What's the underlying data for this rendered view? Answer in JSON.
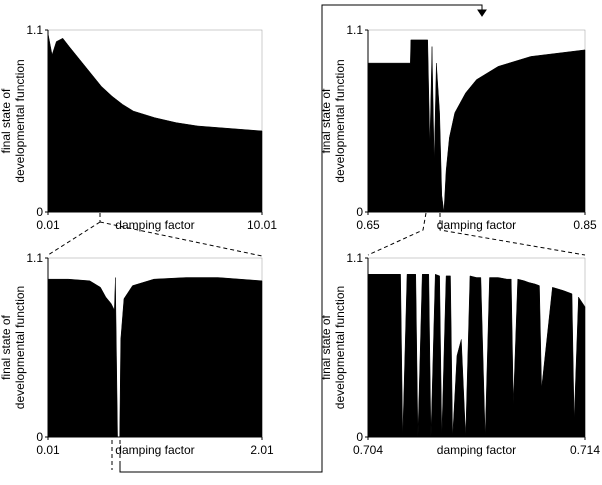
{
  "chart_data": [
    {
      "type": "area",
      "color": "#000000",
      "ylabel": [
        "final state of",
        "developmental function"
      ],
      "xlabel": "damping factor",
      "xlim": [
        0.01,
        10.01
      ],
      "ylim": [
        0,
        1.1
      ],
      "xticks": [
        0.01,
        10.01
      ],
      "yticks": [
        0,
        1.1
      ],
      "x": [
        0.01,
        0.2,
        0.4,
        0.7,
        1,
        1.5,
        2,
        2.5,
        3,
        3.5,
        4,
        5,
        6,
        7,
        8,
        9,
        10.01
      ],
      "values": [
        1.08,
        0.95,
        1.03,
        1.05,
        1.0,
        0.92,
        0.84,
        0.76,
        0.7,
        0.65,
        0.61,
        0.57,
        0.54,
        0.52,
        0.51,
        0.5,
        0.49
      ]
    },
    {
      "type": "area",
      "color": "#000000",
      "ylabel": [
        "final state of",
        "developmental function"
      ],
      "xlabel": "damping factor",
      "xlim": [
        0.01,
        2.01
      ],
      "ylim": [
        0,
        1.1
      ],
      "xticks": [
        0.01,
        2.01
      ],
      "yticks": [
        0,
        1.1
      ],
      "x": [
        0.01,
        0.2,
        0.4,
        0.5,
        0.55,
        0.6,
        0.63,
        0.64,
        0.65,
        0.66,
        0.68,
        0.69,
        0.72,
        0.8,
        1.0,
        1.3,
        1.6,
        2.01
      ],
      "values": [
        0.97,
        0.97,
        0.96,
        0.92,
        0.86,
        0.82,
        0.78,
        0.98,
        0.5,
        0,
        0,
        0.6,
        0.85,
        0.93,
        0.97,
        0.98,
        0.98,
        0.96
      ]
    },
    {
      "type": "area",
      "color": "#000000",
      "ylabel": [
        "final state of",
        "developmental function"
      ],
      "xlabel": "damping factor",
      "xlim": [
        0.65,
        0.85
      ],
      "ylim": [
        0,
        1.1
      ],
      "xticks": [
        0.65,
        0.85
      ],
      "yticks": [
        0,
        1.1
      ],
      "x": [
        0.65,
        0.689,
        0.6895,
        0.705,
        0.707,
        0.709,
        0.711,
        0.713,
        0.716,
        0.718,
        0.72,
        0.722,
        0.725,
        0.73,
        0.74,
        0.75,
        0.77,
        0.8,
        0.85
      ],
      "values": [
        0.9,
        0.9,
        1.04,
        1.04,
        0.4,
        1.0,
        0.3,
        0.9,
        0.6,
        0.1,
        0,
        0.25,
        0.45,
        0.6,
        0.72,
        0.8,
        0.88,
        0.94,
        0.98
      ]
    },
    {
      "type": "area",
      "color": "#000000",
      "ylabel": [
        "final state of",
        "developmental function"
      ],
      "xlabel": "damping factor",
      "xlim": [
        0.704,
        0.714
      ],
      "ylim": [
        0,
        1.1
      ],
      "xticks": [
        0.704,
        0.714
      ],
      "yticks": [
        0,
        1.1
      ],
      "x": [
        0.704,
        0.7055,
        0.7056,
        0.7058,
        0.7062,
        0.7063,
        0.7065,
        0.7068,
        0.7069,
        0.7071,
        0.7073,
        0.7074,
        0.7076,
        0.7078,
        0.7079,
        0.7081,
        0.7083,
        0.7085,
        0.7087,
        0.709,
        0.7092,
        0.7094,
        0.7096,
        0.71,
        0.7104,
        0.7106,
        0.7107,
        0.7109,
        0.7112,
        0.7114,
        0.7117,
        0.7119,
        0.712,
        0.7125,
        0.713,
        0.7134,
        0.7135,
        0.7137,
        0.714
      ],
      "values": [
        1.0,
        1.0,
        0,
        1.0,
        1.0,
        0,
        1.0,
        1.0,
        0,
        1.0,
        0.99,
        0,
        0.99,
        0.99,
        0,
        0.5,
        0.6,
        0,
        0.99,
        0.98,
        0.98,
        0,
        0.98,
        0.98,
        0.97,
        0.97,
        0.2,
        0.97,
        0.96,
        0.95,
        0.94,
        0.93,
        0.3,
        0.92,
        0.9,
        0.88,
        0.1,
        0.86,
        0.8
      ]
    }
  ]
}
